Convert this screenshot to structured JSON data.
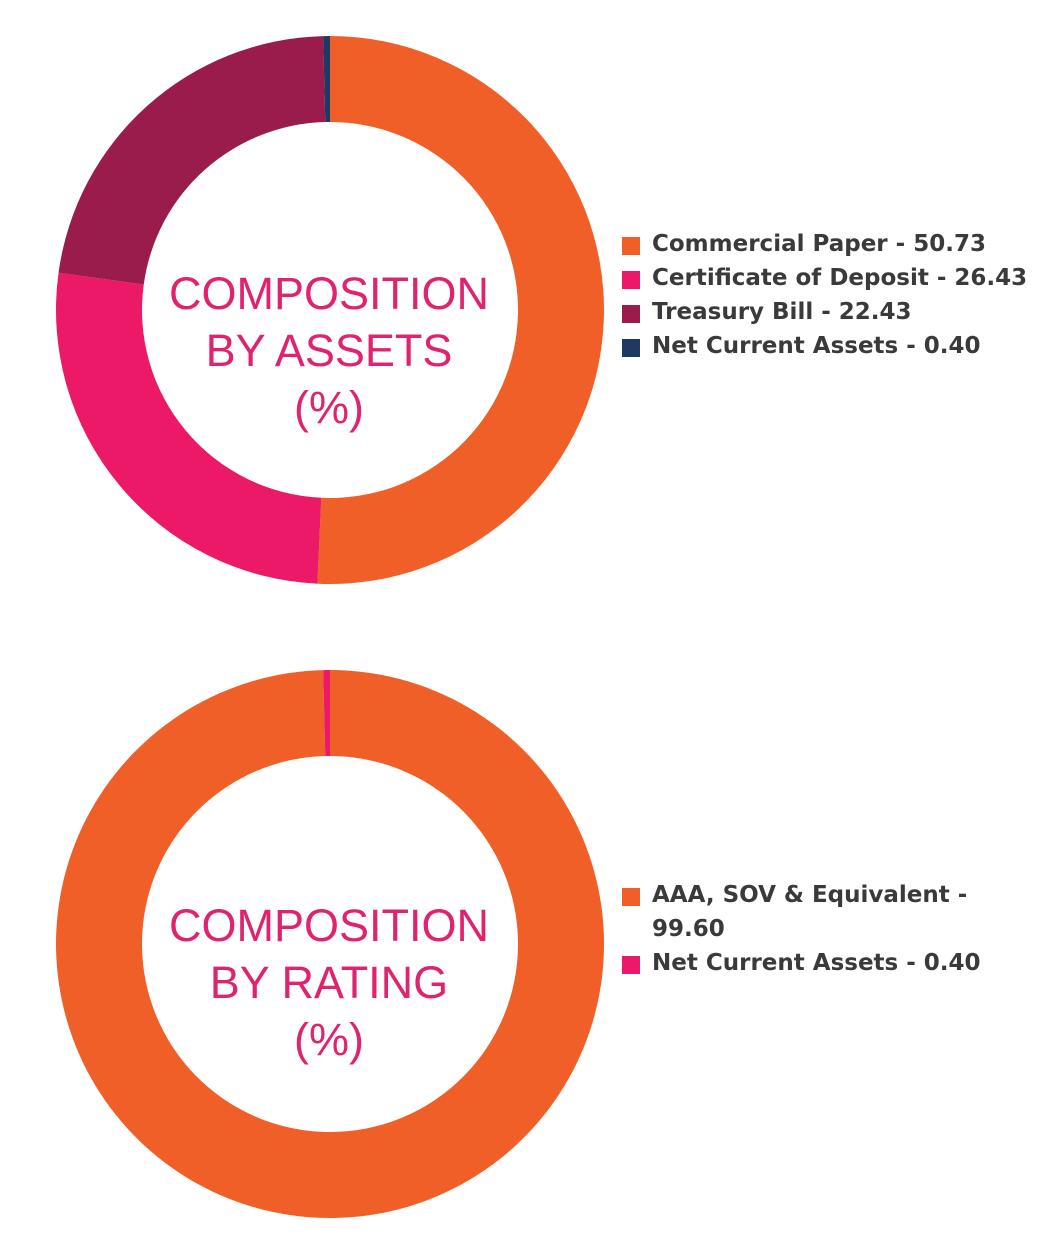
{
  "chart_data": [
    {
      "type": "pie",
      "title_lines": [
        "COMPOSITION",
        "BY ASSETS",
        "(%)"
      ],
      "start_angle": 0,
      "series": [
        {
          "label": "Commercial Paper - 50.73",
          "category": "Commercial Paper",
          "value": 50.73,
          "color": "#f05f28"
        },
        {
          "label": "Certificate of Deposit - 26.43",
          "category": "Certificate of Deposit",
          "value": 26.43,
          "color": "#ec1868"
        },
        {
          "label": "Treasury Bill - 22.43",
          "category": "Treasury Bill",
          "value": 22.43,
          "color": "#9a1c4c"
        },
        {
          "label": "Net Current Assets - 0.40",
          "category": "Net Current Assets",
          "value": 0.4,
          "color": "#1e3a63"
        }
      ]
    },
    {
      "type": "pie",
      "title_lines": [
        "COMPOSITION",
        "BY RATING",
        "(%)"
      ],
      "start_angle": 0,
      "series": [
        {
          "label": "AAA, SOV & Equivalent - 99.60",
          "category": "AAA, SOV & Equivalent",
          "value": 99.6,
          "color": "#f05f28"
        },
        {
          "label": "Net Current Assets - 0.40",
          "category": "Net Current Assets",
          "value": 0.4,
          "color": "#ec1868"
        }
      ]
    }
  ]
}
